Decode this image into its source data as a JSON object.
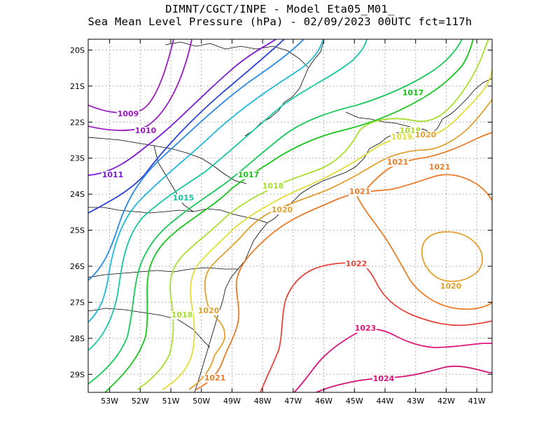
{
  "title": {
    "line1": "DIMNT/CGCT/INPE -  Model Eta05_M01_",
    "line2": "Sea Mean Level Pressure (hPa) - 02/09/2023 00UTC fct=117h"
  },
  "chart_data": {
    "type": "contour-map",
    "variable": "Sea Mean Level Pressure (hPa)",
    "model": "Eta05_M01_",
    "run": "02/09/2023 00UTC",
    "forecast": "fct=117h",
    "lon_range": [
      -53.7,
      -40.5
    ],
    "lat_range": [
      -29.5,
      -19.7
    ],
    "x_ticks": [
      "53W",
      "52W",
      "51W",
      "50W",
      "49W",
      "48W",
      "47W",
      "46W",
      "45W",
      "44W",
      "43W",
      "42W",
      "41W"
    ],
    "y_ticks": [
      "20S",
      "21S",
      "22S",
      "23S",
      "24S",
      "25S",
      "26S",
      "27S",
      "28S",
      "29S"
    ],
    "grid": true,
    "contour_labels": [
      "1009",
      "1010",
      "1011",
      "1015",
      "1017",
      "1017",
      "1018",
      "1018",
      "1018",
      "1019",
      "1020",
      "1020",
      "1020",
      "1020",
      "1021",
      "1021",
      "1021",
      "1021",
      "1022",
      "1023",
      "1024"
    ],
    "levels": [
      1009,
      1010,
      1011,
      1012,
      1013,
      1014,
      1015,
      1016,
      1017,
      1018,
      1019,
      1020,
      1021,
      1022,
      1023,
      1024
    ],
    "level_colors": {
      "1009": "#9a1bbf",
      "1010": "#9a1bbf",
      "1011": "#7a19d6",
      "1012": "#2b3fd9",
      "1013": "#2a8ae6",
      "1014": "#1fbad9",
      "1015": "#18c8a0",
      "1016": "#18c85a",
      "1017": "#19c41e",
      "1018": "#a8df2f",
      "1019": "#e2dc3a",
      "1020": "#e2a030",
      "1021": "#ea7c2a",
      "1022": "#e8443c",
      "1023": "#e0157a",
      "1024": "#d21275"
    }
  }
}
